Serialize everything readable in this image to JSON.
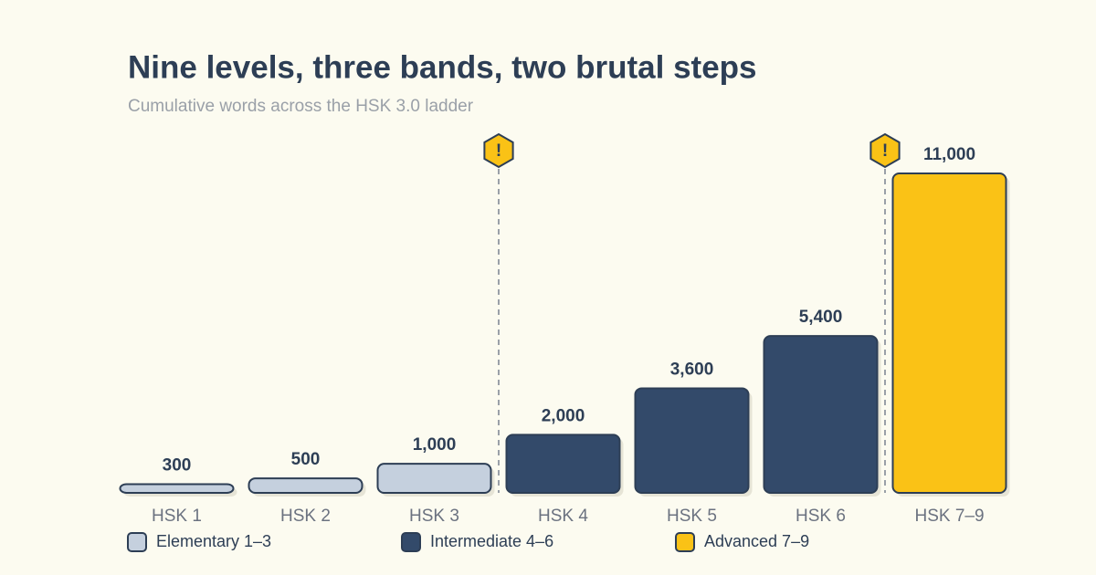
{
  "chart_data": {
    "type": "bar",
    "title": "Nine levels, three bands, two brutal steps",
    "subtitle": "Cumulative words across the HSK 3.0 ladder",
    "categories": [
      "HSK 1",
      "HSK 2",
      "HSK 3",
      "HSK 4",
      "HSK 5",
      "HSK 6",
      "HSK 7–9"
    ],
    "values": [
      300,
      500,
      1000,
      2000,
      3600,
      5400,
      11000
    ],
    "value_labels": [
      "300",
      "500",
      "1,000",
      "2,000",
      "3,600",
      "5,400",
      "11,000"
    ],
    "colors": [
      "#c5d0de",
      "#c5d0de",
      "#c5d0de",
      "#334a6a",
      "#334a6a",
      "#334a6a",
      "#fac216"
    ],
    "legend": [
      {
        "name": "Elementary 1–3",
        "color": "#c5d0de"
      },
      {
        "name": "Intermediate 4–6",
        "color": "#334a6a"
      },
      {
        "name": "Advanced 7–9",
        "color": "#fac216"
      }
    ],
    "annotations": [
      {
        "category": "HSK 4",
        "text": "!"
      },
      {
        "category": "HSK 7–9",
        "text": "!"
      }
    ]
  }
}
